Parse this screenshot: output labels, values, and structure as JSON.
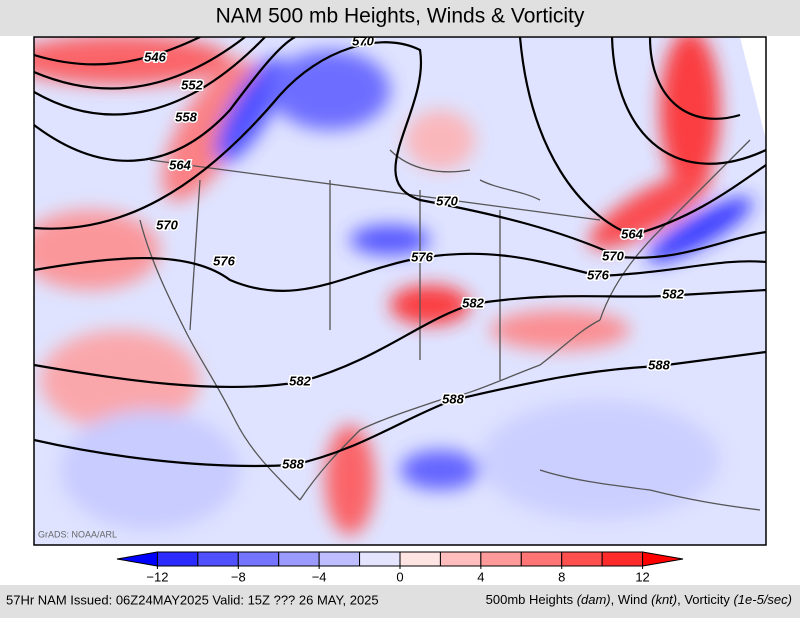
{
  "header": {
    "title": "NAM 500 mb Heights, Winds & Vorticity"
  },
  "map": {
    "contour_labels": [
      546,
      552,
      558,
      564,
      570,
      570,
      570,
      576,
      576,
      582,
      582,
      564,
      570,
      576,
      582,
      588,
      588,
      588
    ],
    "credit": "GrADS: NOAA/ARL"
  },
  "colorbar": {
    "levels": [
      -14,
      -12,
      -10,
      -8,
      -6,
      -4,
      -2,
      0,
      2,
      4,
      6,
      8,
      10,
      12,
      14
    ],
    "colors": [
      "#0000ff",
      "#2b2bff",
      "#5050ff",
      "#7474ff",
      "#9a9aff",
      "#bdbdff",
      "#e4e4ff",
      "#ffe4e4",
      "#ffbdbd",
      "#ff9a9a",
      "#ff7474",
      "#ff5050",
      "#ff2b2b",
      "#ff0000"
    ],
    "ticks": [
      {
        "value": -12,
        "label": "−12"
      },
      {
        "value": -8,
        "label": "−8"
      },
      {
        "value": -4,
        "label": "−4"
      },
      0,
      4,
      8,
      12
    ]
  },
  "footer": {
    "left": "57Hr NAM Issued: 06Z24MAY2025 Valid: 15Z ??? 26 MAY, 2025",
    "right": [
      "500mb Heights ",
      "(dam)",
      ", Wind ",
      "(knt)",
      ", Vorticity ",
      "(1e-5/sec)"
    ]
  }
}
